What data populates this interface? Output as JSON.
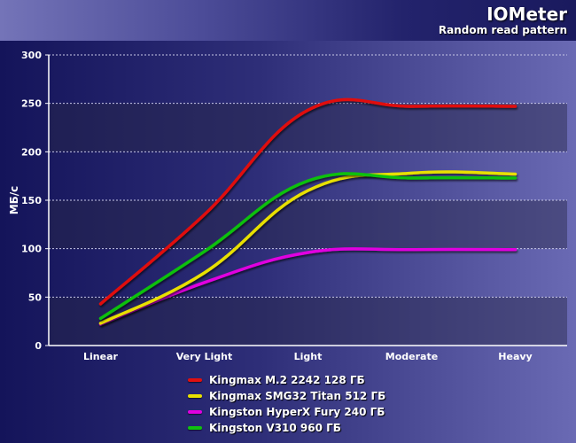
{
  "header": {
    "title": "IOMeter",
    "subtitle": "Random read pattern"
  },
  "chart_data": {
    "type": "line",
    "title": "IOMeter",
    "subtitle": "Random read pattern",
    "xlabel": "",
    "ylabel": "МБ/с",
    "categories": [
      "Linear",
      "Very Light",
      "Light",
      "Moderate",
      "Heavy"
    ],
    "ylim": [
      0,
      300
    ],
    "yticks": [
      0,
      50,
      100,
      150,
      200,
      250,
      300
    ],
    "grid": true,
    "legend_position": "bottom",
    "series": [
      {
        "name": "Kingmax M.2 2242 128 ГБ",
        "color": "#e01010",
        "values": [
          43,
          135,
          243,
          247,
          247
        ]
      },
      {
        "name": "Kingmax SMG32 Titan 512 ГБ",
        "color": "#e8e000",
        "values": [
          23,
          75,
          160,
          178,
          177
        ]
      },
      {
        "name": "Kingston HyperX Fury 240 ГБ",
        "color": "#e000e0",
        "values": [
          22,
          65,
          96,
          99,
          99
        ]
      },
      {
        "name": "Kingston V310 960 ГБ",
        "color": "#10c010",
        "values": [
          28,
          97,
          170,
          173,
          173
        ]
      }
    ]
  }
}
